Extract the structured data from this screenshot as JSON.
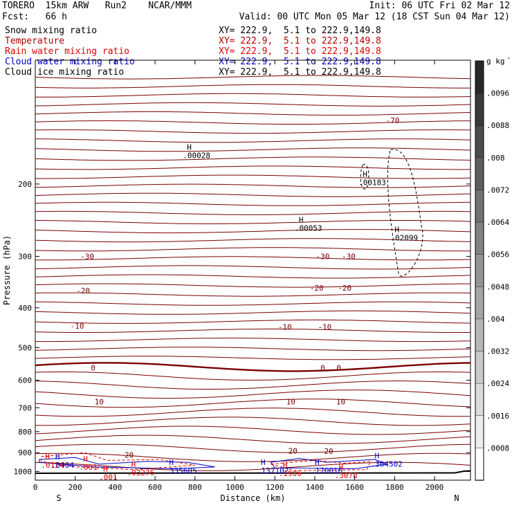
{
  "header": {
    "left_line1": "TORERO  15km ARW   Run2    NCAR/MMM",
    "left_line2": "Fcst:   66 h",
    "right_line1": "Init: 06 UTC Fri 02 Mar 12",
    "right_line2": "Valid: 00 UTC Mon 05 Mar 12 (18 CST Sun 04 Mar 12)",
    "fields": [
      {
        "name": "Snow mixing ratio",
        "xy": "XY= 222.9,  5.1 to 222.9,149.8",
        "color": "#000000"
      },
      {
        "name": "Temperature",
        "xy": "XY= 222.9,  5.1 to 222.9,149.8",
        "color": "#b00000"
      },
      {
        "name": "Rain water mixing ratio",
        "xy": "XY= 222.9,  5.1 to 222.9,149.8",
        "color": "#e00000"
      },
      {
        "name": "Cloud water mixing ratio",
        "xy": "XY= 222.9,  5.1 to 222.9,149.8",
        "color": "#0000c0"
      },
      {
        "name": "Cloud ice mixing ratio",
        "xy": "XY= 222.9,  5.1 to 222.9,149.8",
        "color": "#000000"
      }
    ]
  },
  "chart_data": {
    "type": "cross-section contour",
    "xlabel": "Distance (km)",
    "ylabel": "Pressure (hPa)",
    "xlim": [
      0,
      2180
    ],
    "ylim": [
      100,
      1050
    ],
    "y_scale": "log-pressure",
    "x_ticks": [
      0,
      200,
      400,
      600,
      800,
      1000,
      1200,
      1400,
      1600,
      1800,
      2000
    ],
    "y_ticks": [
      200,
      300,
      400,
      500,
      600,
      700,
      800,
      900,
      1000
    ],
    "endpoint_left": "S",
    "endpoint_right": "N",
    "colorbar": {
      "unit": "g kg",
      "unit_exp": "-1",
      "labels": [
        ".0096",
        ".0088",
        ".008",
        ".0072",
        ".0064",
        ".0056",
        ".0048",
        ".004",
        ".0032",
        ".0024",
        ".0016",
        ".0008"
      ]
    },
    "temperature_contours": [
      {
        "value": -70,
        "label": "-70",
        "label_x": 1790,
        "base_p": 140
      },
      {
        "value": -30,
        "label": "-30",
        "label_x": 1570,
        "base_p": 300
      },
      {
        "value": -30,
        "label": "-30",
        "label_x": 1440,
        "base_p": 300
      },
      {
        "value": -30,
        "label": "-30",
        "label_x": 260,
        "base_p": 300
      },
      {
        "value": -20,
        "label": "-20",
        "label_x": 240,
        "base_p": 363
      },
      {
        "value": -20,
        "label": "-20",
        "label_x": 1410,
        "base_p": 358
      },
      {
        "value": -20,
        "label": "-20",
        "label_x": 1550,
        "base_p": 358
      },
      {
        "value": -10,
        "label": "-10",
        "label_x": 210,
        "base_p": 443
      },
      {
        "value": -10,
        "label": "-10",
        "label_x": 1250,
        "base_p": 445
      },
      {
        "value": -10,
        "label": "-10",
        "label_x": 1450,
        "base_p": 445
      },
      {
        "value": 0,
        "label": "0",
        "label_x": 290,
        "base_p": 560
      },
      {
        "value": 0,
        "label": "0",
        "label_x": 1440,
        "base_p": 560
      },
      {
        "value": 0,
        "label": "0",
        "label_x": 1520,
        "base_p": 560
      },
      {
        "value": 10,
        "label": "10",
        "label_x": 320,
        "base_p": 676
      },
      {
        "value": 10,
        "label": "10",
        "label_x": 1280,
        "base_p": 676
      },
      {
        "value": 10,
        "label": "10",
        "label_x": 1530,
        "base_p": 676
      },
      {
        "value": 20,
        "label": "20",
        "label_x": 1290,
        "base_p": 890
      },
      {
        "value": 20,
        "label": "20",
        "label_x": 1470,
        "base_p": 893
      },
      {
        "value": 20,
        "label": "20",
        "label_x": 470,
        "base_p": 912
      }
    ],
    "hi_markers": [
      {
        "x": 760,
        "p": 165,
        "label": ".00028",
        "color": "#000000"
      },
      {
        "x": 1640,
        "p": 192,
        "label": ".00183",
        "color": "#000000"
      },
      {
        "x": 1320,
        "p": 248,
        "label": ".00053",
        "color": "#000000"
      },
      {
        "x": 1800,
        "p": 262,
        "label": ".02099",
        "color": "#000000"
      },
      {
        "x": 50,
        "p": 935,
        "label": ".0124",
        "color": "#e00000"
      },
      {
        "x": 100,
        "p": 935,
        "label": ".0404",
        "color": "#0000c0"
      },
      {
        "x": 240,
        "p": 945,
        "label": ".001",
        "color": "#e00000"
      },
      {
        "x": 480,
        "p": 975,
        "label": ".03276",
        "color": "#e00000"
      },
      {
        "x": 670,
        "p": 965,
        "label": ".335605",
        "color": "#0000c0"
      },
      {
        "x": 1130,
        "p": 965,
        "label": ".137102",
        "color": "#0000c0"
      },
      {
        "x": 1240,
        "p": 980,
        "label": ".1906",
        "color": "#e00000"
      },
      {
        "x": 1400,
        "p": 965,
        "label": ".170016",
        "color": "#0000c0"
      },
      {
        "x": 1520,
        "p": 990,
        "label": ".3078",
        "color": "#e00000"
      },
      {
        "x": 1700,
        "p": 930,
        "label": ".364502",
        "color": "#0000c0"
      },
      {
        "x": 340,
        "p": 1000,
        "label": ".001",
        "color": "#e00000"
      }
    ]
  }
}
